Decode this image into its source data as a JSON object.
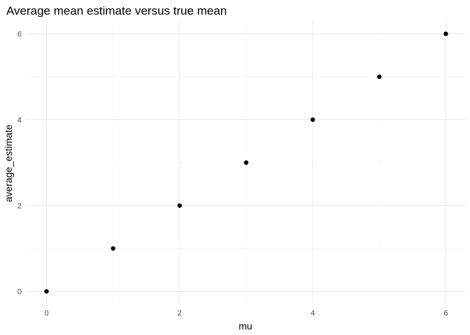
{
  "chart_data": {
    "type": "scatter",
    "title": "Average mean estimate versus true mean",
    "xlabel": "mu",
    "ylabel": "average_estimate",
    "xlim": [
      -0.3,
      6.3
    ],
    "ylim": [
      -0.3,
      6.3
    ],
    "x_ticks": [
      0,
      2,
      4,
      6
    ],
    "y_ticks": [
      0,
      2,
      4,
      6
    ],
    "x_minor": [
      1,
      3,
      5
    ],
    "y_minor": [
      1,
      3,
      5
    ],
    "grid": true,
    "legend": "none",
    "point_color": "#000000",
    "x": [
      0,
      1,
      2,
      3,
      4,
      5,
      6
    ],
    "y": [
      0.0,
      1.0,
      2.0,
      3.0,
      4.0,
      5.0,
      6.0
    ]
  }
}
